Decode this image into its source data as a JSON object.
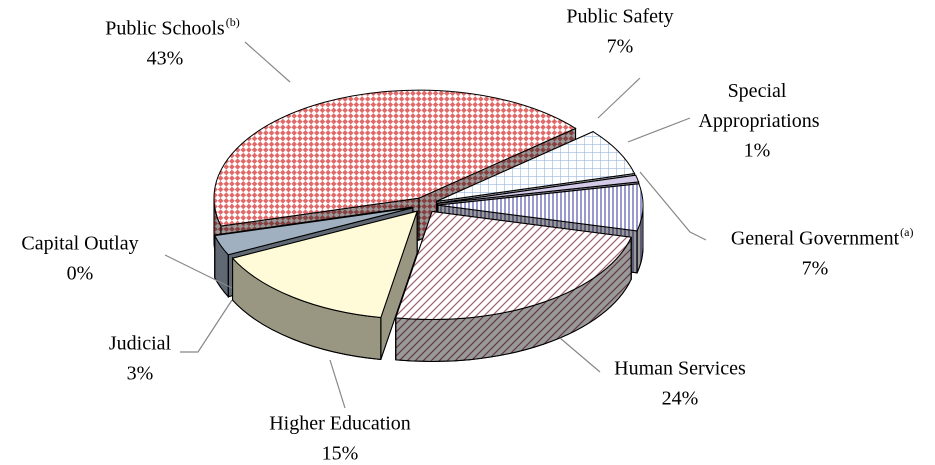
{
  "chart_data": {
    "type": "pie",
    "categories": [
      "Public Schools",
      "Public Safety",
      "Special Appropriations",
      "General Government",
      "Human Services",
      "Higher Education",
      "Judicial",
      "Capital Outlay"
    ],
    "superscripts": [
      "(b)",
      null,
      null,
      "(a)",
      null,
      null,
      null,
      null
    ],
    "values": [
      43,
      7,
      1,
      7,
      24,
      15,
      3,
      0
    ],
    "value_labels": [
      "43%",
      "7%",
      "1%",
      "7%",
      "24%",
      "15%",
      "3%",
      "0%"
    ],
    "colors": [
      "#e06a6a",
      "#9ab8e0",
      "#b8a8d8",
      "#8080c0",
      "#a06070",
      "#fffbd8",
      "#a0b0c0",
      "#b0d0f0"
    ],
    "patterns": [
      "checker",
      "grid",
      "lines",
      "vstripe",
      "diag",
      "solid",
      "solid",
      "grid"
    ],
    "three_d": true,
    "exploded": true
  }
}
